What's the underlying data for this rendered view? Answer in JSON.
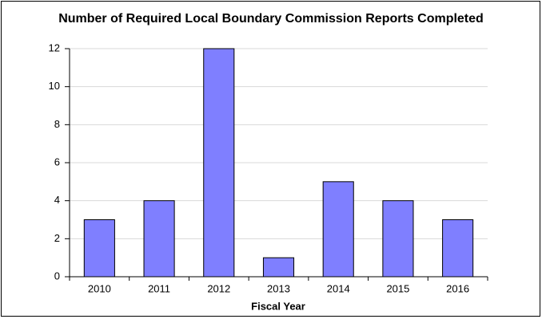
{
  "chart_data": {
    "type": "bar",
    "title": "Number of Required Local Boundary Commission Reports Completed",
    "x_label": "Fiscal Year",
    "categories": [
      "2010",
      "2011",
      "2012",
      "2013",
      "2014",
      "2015",
      "2016"
    ],
    "values": [
      3,
      4,
      12,
      1,
      5,
      4,
      3
    ],
    "color": "#7f7fff",
    "ylim": [
      0,
      12
    ],
    "yticks": [
      0,
      2,
      4,
      6,
      8,
      10,
      12
    ],
    "grid": true
  }
}
